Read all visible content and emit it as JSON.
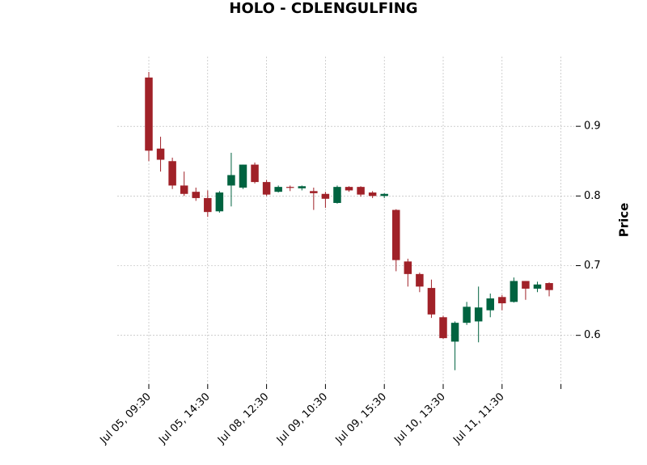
{
  "chart_data": {
    "type": "candlestick",
    "title": "HOLO - CDLENGULFING",
    "xlabel": "",
    "ylabel": "Price",
    "ylim": [
      0.53,
      1.0
    ],
    "y_ticks": [
      0.6,
      0.7,
      0.8,
      0.9
    ],
    "y_tick_labels": [
      "0.6",
      "0.7",
      "0.8",
      "0.9"
    ],
    "y_axis_side": "right",
    "grid": true,
    "x_tick_labels": [
      "Jul 05, 09:30",
      "Jul 05, 14:30",
      "Jul 08, 12:30",
      "Jul 09, 10:30",
      "Jul 09, 15:30",
      "Jul 10, 13:30",
      "Jul 11, 11:30",
      ""
    ],
    "x_tick_indices": [
      0,
      5,
      10,
      15,
      20,
      25,
      30,
      35
    ],
    "colors": {
      "up": "#006340",
      "down": "#a02128",
      "grid": "#b0b0b0"
    },
    "candles": [
      {
        "open": 0.97,
        "high": 0.978,
        "low": 0.85,
        "close": 0.865
      },
      {
        "open": 0.868,
        "high": 0.885,
        "low": 0.835,
        "close": 0.852
      },
      {
        "open": 0.85,
        "high": 0.855,
        "low": 0.81,
        "close": 0.815
      },
      {
        "open": 0.815,
        "high": 0.835,
        "low": 0.8,
        "close": 0.803
      },
      {
        "open": 0.806,
        "high": 0.812,
        "low": 0.793,
        "close": 0.797
      },
      {
        "open": 0.797,
        "high": 0.808,
        "low": 0.77,
        "close": 0.777
      },
      {
        "open": 0.778,
        "high": 0.807,
        "low": 0.776,
        "close": 0.805
      },
      {
        "open": 0.815,
        "high": 0.862,
        "low": 0.785,
        "close": 0.83
      },
      {
        "open": 0.812,
        "high": 0.845,
        "low": 0.81,
        "close": 0.845
      },
      {
        "open": 0.845,
        "high": 0.848,
        "low": 0.818,
        "close": 0.82
      },
      {
        "open": 0.82,
        "high": 0.823,
        "low": 0.8,
        "close": 0.802
      },
      {
        "open": 0.806,
        "high": 0.815,
        "low": 0.805,
        "close": 0.813
      },
      {
        "open": 0.813,
        "high": 0.815,
        "low": 0.807,
        "close": 0.812
      },
      {
        "open": 0.811,
        "high": 0.815,
        "low": 0.808,
        "close": 0.814
      },
      {
        "open": 0.807,
        "high": 0.812,
        "low": 0.78,
        "close": 0.804
      },
      {
        "open": 0.803,
        "high": 0.806,
        "low": 0.783,
        "close": 0.796
      },
      {
        "open": 0.79,
        "high": 0.815,
        "low": 0.789,
        "close": 0.813
      },
      {
        "open": 0.813,
        "high": 0.814,
        "low": 0.806,
        "close": 0.808
      },
      {
        "open": 0.813,
        "high": 0.814,
        "low": 0.799,
        "close": 0.802
      },
      {
        "open": 0.805,
        "high": 0.807,
        "low": 0.797,
        "close": 0.8
      },
      {
        "open": 0.8,
        "high": 0.804,
        "low": 0.797,
        "close": 0.803
      },
      {
        "open": 0.78,
        "high": 0.781,
        "low": 0.692,
        "close": 0.708
      },
      {
        "open": 0.706,
        "high": 0.71,
        "low": 0.67,
        "close": 0.688
      },
      {
        "open": 0.688,
        "high": 0.69,
        "low": 0.662,
        "close": 0.67
      },
      {
        "open": 0.668,
        "high": 0.68,
        "low": 0.625,
        "close": 0.63
      },
      {
        "open": 0.626,
        "high": 0.628,
        "low": 0.595,
        "close": 0.596
      },
      {
        "open": 0.591,
        "high": 0.62,
        "low": 0.55,
        "close": 0.618
      },
      {
        "open": 0.618,
        "high": 0.648,
        "low": 0.615,
        "close": 0.641
      },
      {
        "open": 0.62,
        "high": 0.67,
        "low": 0.59,
        "close": 0.64
      },
      {
        "open": 0.636,
        "high": 0.66,
        "low": 0.626,
        "close": 0.653
      },
      {
        "open": 0.655,
        "high": 0.658,
        "low": 0.636,
        "close": 0.646
      },
      {
        "open": 0.648,
        "high": 0.683,
        "low": 0.647,
        "close": 0.678
      },
      {
        "open": 0.678,
        "high": 0.678,
        "low": 0.651,
        "close": 0.667
      },
      {
        "open": 0.667,
        "high": 0.677,
        "low": 0.662,
        "close": 0.673
      },
      {
        "open": 0.675,
        "high": 0.676,
        "low": 0.656,
        "close": 0.665
      }
    ]
  }
}
